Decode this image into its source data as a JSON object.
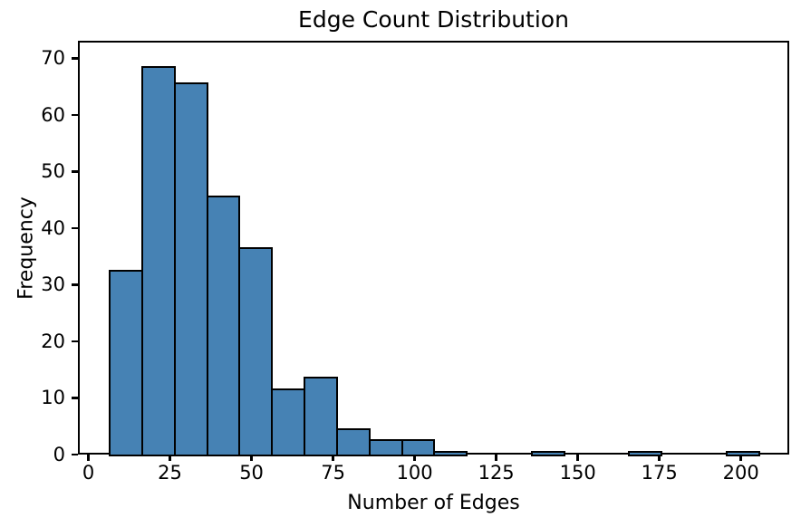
{
  "figure": {
    "title": "Edge Count Distribution",
    "xlabel": "Number of Edges",
    "ylabel": "Frequency"
  },
  "chart_data": {
    "type": "bar",
    "subtype": "histogram",
    "title": "Edge Count Distribution",
    "xlabel": "Number of Edges",
    "ylabel": "Frequency",
    "bin_edges": [
      6.0,
      15.95,
      25.9,
      35.85,
      45.8,
      55.75,
      65.7,
      75.65,
      85.6,
      95.55,
      105.5,
      115.45,
      125.4,
      135.35,
      145.3,
      155.25,
      165.2,
      175.15,
      185.1,
      195.05,
      205.0
    ],
    "counts": [
      33,
      69,
      66,
      46,
      37,
      12,
      14,
      5,
      3,
      3,
      1,
      0,
      0,
      1,
      0,
      0,
      1,
      0,
      0,
      1
    ],
    "xticks": [
      0,
      25,
      50,
      75,
      100,
      125,
      150,
      175,
      200
    ],
    "yticks": [
      0,
      10,
      20,
      30,
      40,
      50,
      60,
      70
    ],
    "xlim": [
      -3.2,
      214.8
    ],
    "ylim": [
      0,
      73.1
    ],
    "bar_color": "#4682b4",
    "bar_edge_color": "#000000",
    "axis_color": "#000000",
    "grid": false,
    "legend": null
  }
}
